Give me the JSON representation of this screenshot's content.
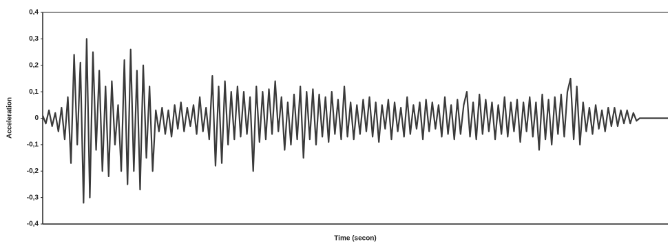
{
  "chart_data": {
    "type": "line",
    "ylabel": "Acceleration",
    "xlabel": "Time (secon)",
    "color": "#3a3a3a",
    "grid": false,
    "ylim": [
      -0.4,
      0.4
    ],
    "yticks": [
      {
        "value": -0.4,
        "label": "-0,4"
      },
      {
        "value": -0.3,
        "label": "-0,3"
      },
      {
        "value": -0.2,
        "label": "-0,2"
      },
      {
        "value": -0.1,
        "label": "-0,1"
      },
      0,
      {
        "value": 0.1,
        "label": "0,1"
      },
      {
        "value": 0.2,
        "label": "0,2"
      },
      {
        "value": 0.3,
        "label": "0,3"
      },
      {
        "value": 0.4,
        "label": "0,4"
      }
    ],
    "xlim": [
      0,
      199
    ],
    "x": [
      0,
      1,
      2,
      3,
      4,
      5,
      6,
      7,
      8,
      9,
      10,
      11,
      12,
      13,
      14,
      15,
      16,
      17,
      18,
      19,
      20,
      21,
      22,
      23,
      24,
      25,
      26,
      27,
      28,
      29,
      30,
      31,
      32,
      33,
      34,
      35,
      36,
      37,
      38,
      39,
      40,
      41,
      42,
      43,
      44,
      45,
      46,
      47,
      48,
      49,
      50,
      51,
      52,
      53,
      54,
      55,
      56,
      57,
      58,
      59,
      60,
      61,
      62,
      63,
      64,
      65,
      66,
      67,
      68,
      69,
      70,
      71,
      72,
      73,
      74,
      75,
      76,
      77,
      78,
      79,
      80,
      81,
      82,
      83,
      84,
      85,
      86,
      87,
      88,
      89,
      90,
      91,
      92,
      93,
      94,
      95,
      96,
      97,
      98,
      99,
      100,
      101,
      102,
      103,
      104,
      105,
      106,
      107,
      108,
      109,
      110,
      111,
      112,
      113,
      114,
      115,
      116,
      117,
      118,
      119,
      120,
      121,
      122,
      123,
      124,
      125,
      126,
      127,
      128,
      129,
      130,
      131,
      132,
      133,
      134,
      135,
      136,
      137,
      138,
      139,
      140,
      141,
      142,
      143,
      144,
      145,
      146,
      147,
      148,
      149,
      150,
      151,
      152,
      153,
      154,
      155,
      156,
      157,
      158,
      159,
      160,
      161,
      162,
      163,
      164,
      165,
      166,
      167,
      168,
      169,
      170,
      171,
      172,
      173,
      174,
      175,
      176,
      177,
      178,
      179,
      180,
      181,
      182,
      183,
      184,
      185,
      186,
      187,
      188,
      189,
      190,
      191,
      192,
      193,
      194,
      195,
      196,
      197,
      198,
      199
    ],
    "values": [
      0.01,
      -0.02,
      0.03,
      -0.03,
      0.02,
      -0.05,
      0.04,
      -0.08,
      0.08,
      -0.17,
      0.24,
      -0.1,
      0.21,
      -0.32,
      0.3,
      -0.3,
      0.25,
      -0.12,
      0.18,
      -0.2,
      0.12,
      -0.22,
      0.14,
      -0.1,
      0.05,
      -0.2,
      0.22,
      -0.25,
      0.26,
      -0.2,
      0.18,
      -0.27,
      0.2,
      -0.15,
      0.12,
      -0.2,
      0.03,
      -0.05,
      0.04,
      -0.06,
      0.03,
      -0.07,
      0.05,
      -0.04,
      0.06,
      -0.05,
      0.04,
      -0.03,
      0.05,
      -0.06,
      0.08,
      -0.05,
      0.04,
      -0.08,
      0.16,
      -0.18,
      0.12,
      -0.17,
      0.14,
      -0.1,
      0.1,
      -0.08,
      0.12,
      -0.07,
      0.1,
      -0.06,
      0.08,
      -0.2,
      0.12,
      -0.09,
      0.1,
      -0.08,
      0.11,
      -0.06,
      0.14,
      -0.05,
      0.08,
      -0.12,
      0.06,
      -0.1,
      0.09,
      -0.08,
      0.12,
      -0.15,
      0.1,
      -0.08,
      0.11,
      -0.1,
      0.09,
      -0.07,
      0.08,
      -0.09,
      0.1,
      -0.06,
      0.07,
      -0.08,
      0.12,
      -0.07,
      0.06,
      -0.08,
      0.05,
      -0.06,
      0.07,
      -0.05,
      0.08,
      -0.07,
      0.06,
      -0.09,
      0.05,
      -0.04,
      0.07,
      -0.08,
      0.06,
      -0.05,
      0.04,
      -0.07,
      0.08,
      -0.06,
      0.05,
      -0.04,
      0.06,
      -0.08,
      0.07,
      -0.05,
      0.06,
      -0.04,
      0.05,
      -0.07,
      0.08,
      -0.06,
      0.05,
      -0.08,
      0.07,
      -0.06,
      0.05,
      0.1,
      -0.07,
      0.06,
      -0.08,
      0.09,
      -0.06,
      0.07,
      -0.05,
      0.06,
      -0.08,
      0.05,
      -0.06,
      0.08,
      -0.07,
      0.06,
      -0.05,
      0.07,
      -0.09,
      0.06,
      -0.05,
      0.08,
      -0.07,
      0.06,
      -0.12,
      0.09,
      -0.08,
      0.07,
      -0.1,
      0.08,
      -0.06,
      0.09,
      -0.07,
      0.1,
      0.15,
      -0.08,
      0.12,
      -0.1,
      0.06,
      -0.05,
      0.04,
      -0.06,
      0.05,
      -0.04,
      0.03,
      -0.05,
      0.04,
      -0.03,
      0.04,
      -0.03,
      0.03,
      -0.02,
      0.03,
      -0.02,
      0.02,
      -0.01,
      0,
      0,
      0,
      0,
      0,
      0,
      0,
      0,
      0,
      0
    ]
  }
}
